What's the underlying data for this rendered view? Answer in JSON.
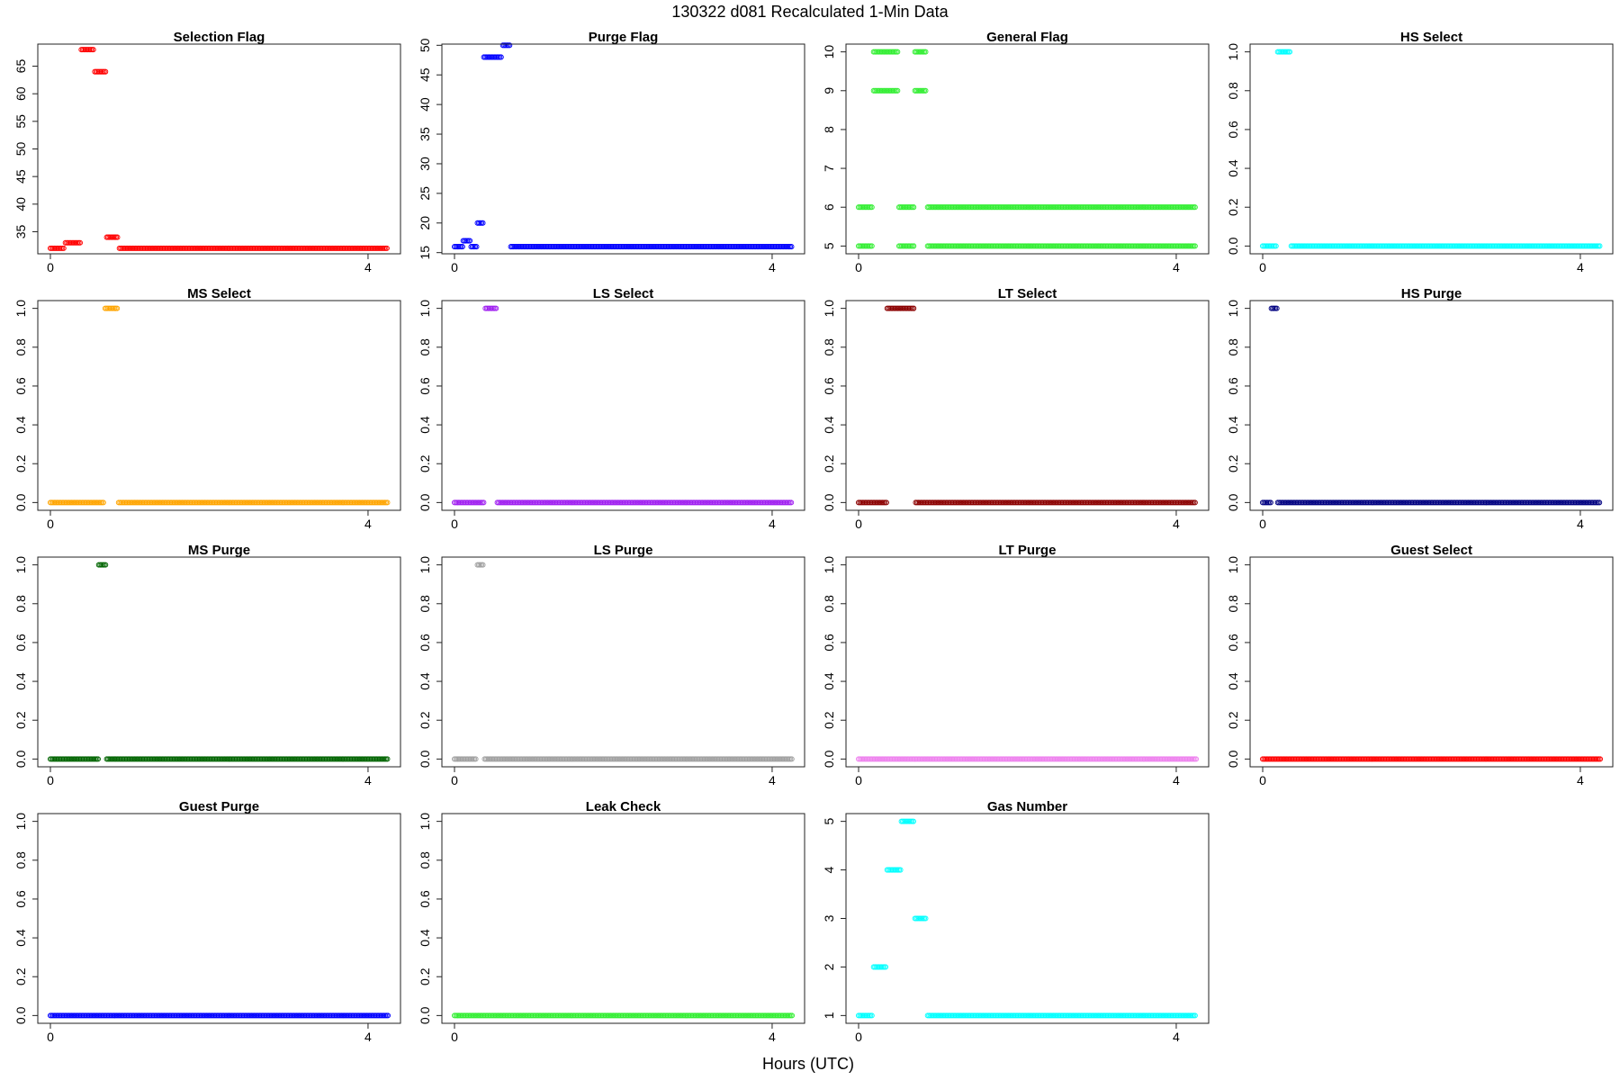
{
  "figure": {
    "title": "130322   d081   Recalculated 1-Min Data",
    "xlabel": "Hours (UTC)"
  },
  "chart_data": [
    {
      "type": "scatter",
      "title": "Selection Flag",
      "color": "#ff0000",
      "xlim": [
        0,
        4.25
      ],
      "ylim": [
        31,
        69
      ],
      "yticks": [
        35,
        40,
        45,
        50,
        55,
        60,
        65
      ],
      "xticks": [
        0,
        4
      ],
      "segments": [
        [
          0.0,
          0.18,
          32
        ],
        [
          0.19,
          0.38,
          33
        ],
        [
          0.39,
          0.55,
          68
        ],
        [
          0.56,
          0.7,
          64
        ],
        [
          0.71,
          0.85,
          34
        ],
        [
          0.87,
          4.25,
          32
        ]
      ]
    },
    {
      "type": "scatter",
      "title": "Purge Flag",
      "color": "#0000ff",
      "xlim": [
        0,
        4.25
      ],
      "ylim": [
        14.8,
        50.2
      ],
      "yticks": [
        15,
        20,
        25,
        30,
        35,
        40,
        45,
        50
      ],
      "xticks": [
        0,
        4
      ],
      "segments": [
        [
          0.0,
          0.1,
          16
        ],
        [
          0.11,
          0.2,
          17
        ],
        [
          0.21,
          0.28,
          16
        ],
        [
          0.29,
          0.36,
          20
        ],
        [
          0.37,
          0.6,
          48
        ],
        [
          0.61,
          0.7,
          50
        ],
        [
          0.71,
          4.25,
          16
        ]
      ]
    },
    {
      "type": "scatter",
      "title": "General Flag",
      "color": "#33ee33",
      "xlim": [
        0,
        4.25
      ],
      "ylim": [
        4.8,
        10.2
      ],
      "yticks": [
        5,
        6,
        7,
        8,
        9,
        10
      ],
      "xticks": [
        0,
        4
      ],
      "segments": [
        [
          0.0,
          0.18,
          6
        ],
        [
          0.0,
          0.18,
          5
        ],
        [
          0.19,
          0.5,
          10
        ],
        [
          0.19,
          0.5,
          9
        ],
        [
          0.51,
          0.7,
          6
        ],
        [
          0.51,
          0.7,
          5
        ],
        [
          0.71,
          0.85,
          10
        ],
        [
          0.71,
          0.85,
          9
        ],
        [
          0.87,
          4.25,
          6
        ],
        [
          0.87,
          4.25,
          5
        ]
      ]
    },
    {
      "type": "scatter",
      "title": "HS Select",
      "color": "#00ffff",
      "xlim": [
        0,
        4.25
      ],
      "ylim": [
        -0.04,
        1.04
      ],
      "yticks": [
        0.0,
        0.2,
        0.4,
        0.6,
        0.8,
        1.0
      ],
      "xticks": [
        0,
        4
      ],
      "segments": [
        [
          0.0,
          0.18,
          0
        ],
        [
          0.19,
          0.34,
          1
        ],
        [
          0.36,
          4.25,
          0
        ]
      ]
    },
    {
      "type": "scatter",
      "title": "MS Select",
      "color": "#ffa500",
      "xlim": [
        0,
        4.25
      ],
      "ylim": [
        -0.04,
        1.04
      ],
      "yticks": [
        0.0,
        0.2,
        0.4,
        0.6,
        0.8,
        1.0
      ],
      "xticks": [
        0,
        4
      ],
      "segments": [
        [
          0.0,
          0.68,
          0
        ],
        [
          0.69,
          0.85,
          1
        ],
        [
          0.86,
          4.25,
          0
        ]
      ]
    },
    {
      "type": "scatter",
      "title": "LS Select",
      "color": "#a020f0",
      "xlim": [
        0,
        4.25
      ],
      "ylim": [
        -0.04,
        1.04
      ],
      "yticks": [
        0.0,
        0.2,
        0.4,
        0.6,
        0.8,
        1.0
      ],
      "xticks": [
        0,
        4
      ],
      "segments": [
        [
          0.0,
          0.38,
          0
        ],
        [
          0.39,
          0.53,
          1
        ],
        [
          0.54,
          4.25,
          0
        ]
      ]
    },
    {
      "type": "scatter",
      "title": "LT Select",
      "color": "#8b0000",
      "xlim": [
        0,
        4.25
      ],
      "ylim": [
        -0.04,
        1.04
      ],
      "yticks": [
        0.0,
        0.2,
        0.4,
        0.6,
        0.8,
        1.0
      ],
      "xticks": [
        0,
        4
      ],
      "segments": [
        [
          0.0,
          0.35,
          0
        ],
        [
          0.36,
          0.7,
          1
        ],
        [
          0.72,
          4.25,
          0
        ]
      ]
    },
    {
      "type": "scatter",
      "title": "HS Purge",
      "color": "#000080",
      "xlim": [
        0,
        4.25
      ],
      "ylim": [
        -0.04,
        1.04
      ],
      "yticks": [
        0.0,
        0.2,
        0.4,
        0.6,
        0.8,
        1.0
      ],
      "xticks": [
        0,
        4
      ],
      "segments": [
        [
          0.0,
          0.1,
          0
        ],
        [
          0.11,
          0.18,
          1
        ],
        [
          0.19,
          4.25,
          0
        ]
      ]
    },
    {
      "type": "scatter",
      "title": "MS Purge",
      "color": "#006400",
      "xlim": [
        0,
        4.25
      ],
      "ylim": [
        -0.04,
        1.04
      ],
      "yticks": [
        0.0,
        0.2,
        0.4,
        0.6,
        0.8,
        1.0
      ],
      "xticks": [
        0,
        4
      ],
      "segments": [
        [
          0.0,
          0.6,
          0
        ],
        [
          0.61,
          0.7,
          1
        ],
        [
          0.71,
          4.25,
          0
        ]
      ]
    },
    {
      "type": "scatter",
      "title": "LS Purge",
      "color": "#a0a0a0",
      "xlim": [
        0,
        4.25
      ],
      "ylim": [
        -0.04,
        1.04
      ],
      "yticks": [
        0.0,
        0.2,
        0.4,
        0.6,
        0.8,
        1.0
      ],
      "xticks": [
        0,
        4
      ],
      "segments": [
        [
          0.0,
          0.28,
          0
        ],
        [
          0.29,
          0.37,
          1
        ],
        [
          0.38,
          4.25,
          0
        ]
      ]
    },
    {
      "type": "scatter",
      "title": "LT Purge",
      "color": "#ee82ee",
      "xlim": [
        0,
        4.25
      ],
      "ylim": [
        -0.04,
        1.04
      ],
      "yticks": [
        0.0,
        0.2,
        0.4,
        0.6,
        0.8,
        1.0
      ],
      "xticks": [
        0,
        4
      ],
      "segments": [
        [
          0.0,
          4.25,
          0
        ]
      ]
    },
    {
      "type": "scatter",
      "title": "Guest Select",
      "color": "#ff0000",
      "xlim": [
        0,
        4.25
      ],
      "ylim": [
        -0.04,
        1.04
      ],
      "yticks": [
        0.0,
        0.2,
        0.4,
        0.6,
        0.8,
        1.0
      ],
      "xticks": [
        0,
        4
      ],
      "segments": [
        [
          0.0,
          4.25,
          0
        ]
      ]
    },
    {
      "type": "scatter",
      "title": "Guest Purge",
      "color": "#0000ff",
      "xlim": [
        0,
        4.25
      ],
      "ylim": [
        -0.04,
        1.04
      ],
      "yticks": [
        0.0,
        0.2,
        0.4,
        0.6,
        0.8,
        1.0
      ],
      "xticks": [
        0,
        4
      ],
      "segments": [
        [
          0.0,
          4.25,
          0
        ]
      ]
    },
    {
      "type": "scatter",
      "title": "Leak Check",
      "color": "#33ee33",
      "xlim": [
        0,
        4.25
      ],
      "ylim": [
        -0.04,
        1.04
      ],
      "yticks": [
        0.0,
        0.2,
        0.4,
        0.6,
        0.8,
        1.0
      ],
      "xticks": [
        0,
        4
      ],
      "segments": [
        [
          0.0,
          4.25,
          0
        ]
      ]
    },
    {
      "type": "scatter",
      "title": "Gas Number",
      "color": "#00ffff",
      "xlim": [
        0,
        4.25
      ],
      "ylim": [
        0.84,
        5.16
      ],
      "yticks": [
        1,
        2,
        3,
        4,
        5
      ],
      "xticks": [
        0,
        4
      ],
      "segments": [
        [
          0.0,
          0.18,
          1
        ],
        [
          0.19,
          0.35,
          2
        ],
        [
          0.36,
          0.53,
          4
        ],
        [
          0.54,
          0.7,
          5
        ],
        [
          0.71,
          0.85,
          3
        ],
        [
          0.87,
          4.25,
          1
        ]
      ]
    }
  ]
}
